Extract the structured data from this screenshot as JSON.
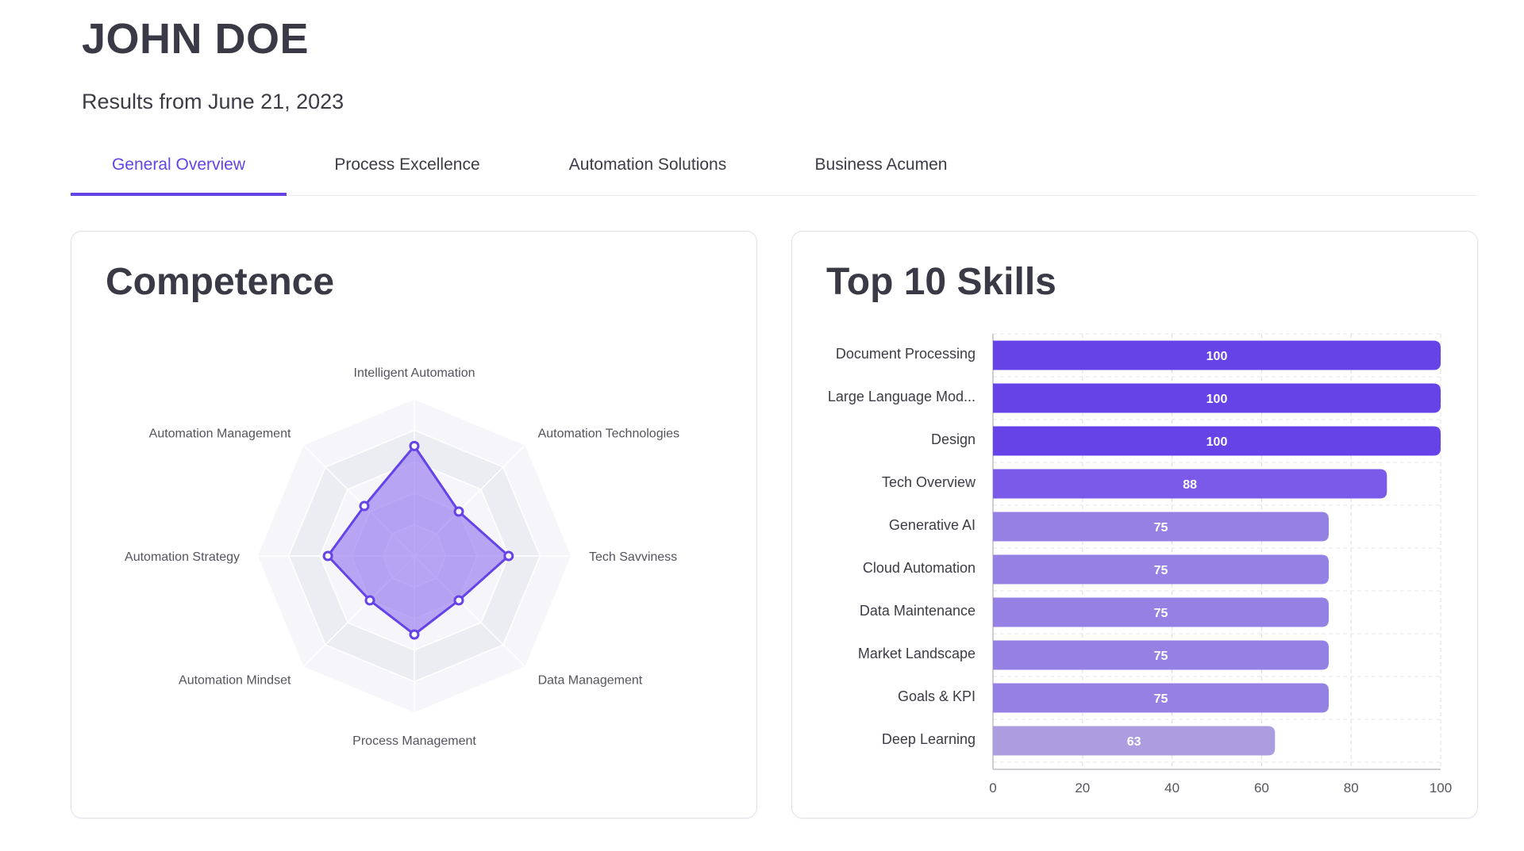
{
  "header": {
    "name": "JOHN DOE",
    "subtitle": "Results from June 21, 2023"
  },
  "tabs": [
    {
      "label": "General Overview",
      "active": true
    },
    {
      "label": "Process Excellence",
      "active": false
    },
    {
      "label": "Automation Solutions",
      "active": false
    },
    {
      "label": "Business Acumen",
      "active": false
    }
  ],
  "colors": {
    "accent": "#6543e6",
    "bar_100": "#6543e6",
    "bar_88": "#7b5ae9",
    "bar_75": "#9580e3",
    "bar_63": "#ab9ddf",
    "radar_fill": "#8e6ff0",
    "radar_ring_light": "#f6f6fa",
    "radar_ring_dark": "#ececf3"
  },
  "competence": {
    "title": "Competence"
  },
  "skills": {
    "title": "Top 10 Skills"
  },
  "chart_data": [
    {
      "type": "radar",
      "axes": [
        "Intelligent Automation",
        "Automation Technologies",
        "Tech Savviness",
        "Data Management",
        "Process Management",
        "Automation Mindset",
        "Automation Strategy",
        "Automation Management"
      ],
      "values": [
        70,
        40,
        60,
        40,
        50,
        40,
        55,
        45
      ],
      "rmax": 100,
      "rings": 5
    },
    {
      "type": "bar",
      "orientation": "horizontal",
      "categories": [
        "Document Processing",
        "Large Language Mod...",
        "Design",
        "Tech Overview",
        "Generative AI",
        "Cloud Automation",
        "Data Maintenance",
        "Market Landscape",
        "Goals & KPI",
        "Deep Learning"
      ],
      "values": [
        100,
        100,
        100,
        88,
        75,
        75,
        75,
        75,
        75,
        63
      ],
      "xlim": [
        0,
        100
      ],
      "xticks": [
        0,
        20,
        40,
        60,
        80,
        100
      ],
      "grid": true
    }
  ]
}
